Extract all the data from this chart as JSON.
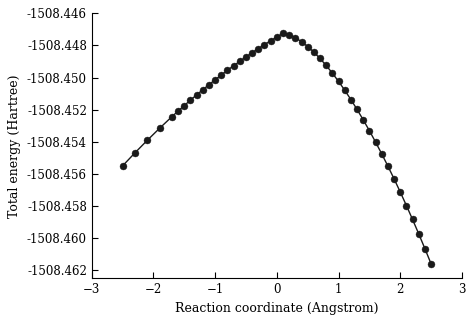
{
  "x_pts": [
    -2.5,
    -2.3,
    -2.1,
    -1.9,
    -1.7,
    -1.6,
    -1.5,
    -1.4,
    -1.3,
    -1.2,
    -1.1,
    -1.0,
    -0.9,
    -0.8,
    -0.7,
    -0.6,
    -0.5,
    -0.4,
    -0.3,
    -0.2,
    -0.1,
    0.0,
    0.1,
    0.2,
    0.3,
    0.4,
    0.5,
    0.6,
    0.7,
    0.8,
    0.9,
    1.0,
    1.1,
    1.2,
    1.3,
    1.4,
    1.5,
    1.6,
    1.7,
    1.8,
    1.9,
    2.0,
    2.1,
    2.2,
    2.3,
    2.4,
    2.5
  ],
  "xlabel": "Reaction coordinate (Angstrom)",
  "ylabel": "Total energy (Hartree)",
  "xlim": [
    -3,
    3
  ],
  "ylim": [
    -1508.4625,
    -1508.446
  ],
  "xticks": [
    -3,
    -2,
    -1,
    0,
    1,
    2,
    3
  ],
  "yticks": [
    -1508.446,
    -1508.448,
    -1508.45,
    -1508.452,
    -1508.454,
    -1508.456,
    -1508.458,
    -1508.46,
    -1508.462
  ],
  "line_color": "#1a1a1a",
  "marker_color": "#1a1a1a",
  "background_color": "#ffffff",
  "marker_size": 5,
  "line_width": 1.0
}
